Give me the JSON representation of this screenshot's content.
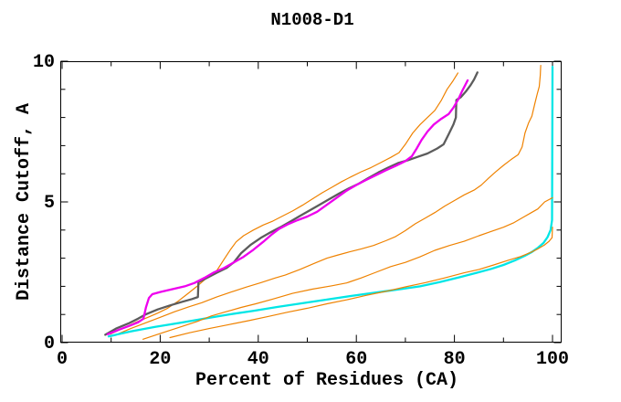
{
  "title": "N1008-D1",
  "chart_data": {
    "type": "line",
    "title": "N1008-D1",
    "xlabel": "Percent of Residues (CA)",
    "ylabel": "Distance Cutoff, A",
    "xlim": [
      0,
      100
    ],
    "ylim": [
      0,
      10
    ],
    "x_major_ticks": [
      0,
      20,
      40,
      60,
      80,
      100
    ],
    "x_minor_ticks": [
      10,
      30,
      50,
      70,
      90
    ],
    "y_major_ticks": [
      0,
      5,
      10
    ],
    "y_minor_ticks": [
      1,
      2,
      3,
      4,
      6,
      7,
      8,
      9
    ],
    "grid": false,
    "legend": "none",
    "background_color": "#ffffff",
    "axis_color": "#000000",
    "series": [
      {
        "name": "orange-2",
        "color": "#ef8200",
        "width": 1.2,
        "points": [
          [
            11,
            0.28
          ],
          [
            14,
            0.5
          ],
          [
            17,
            0.7
          ],
          [
            20,
            0.9
          ],
          [
            23,
            1.1
          ],
          [
            26,
            1.28
          ],
          [
            28.5,
            1.42
          ],
          [
            31.5,
            1.62
          ],
          [
            34.5,
            1.8
          ],
          [
            37.5,
            1.97
          ],
          [
            40.5,
            2.13
          ],
          [
            43.5,
            2.3
          ],
          [
            45.5,
            2.4
          ],
          [
            48.5,
            2.6
          ],
          [
            51.5,
            2.82
          ],
          [
            54,
            3.0
          ],
          [
            56,
            3.1
          ],
          [
            58.5,
            3.22
          ],
          [
            61,
            3.33
          ],
          [
            63.5,
            3.45
          ],
          [
            66,
            3.62
          ],
          [
            68,
            3.77
          ],
          [
            70,
            3.98
          ],
          [
            72,
            4.22
          ],
          [
            74,
            4.42
          ],
          [
            76,
            4.62
          ],
          [
            78,
            4.85
          ],
          [
            80,
            5.05
          ],
          [
            82,
            5.25
          ],
          [
            84,
            5.42
          ],
          [
            85.5,
            5.6
          ],
          [
            87,
            5.85
          ],
          [
            88.5,
            6.08
          ],
          [
            90,
            6.3
          ],
          [
            91.5,
            6.5
          ],
          [
            93,
            6.68
          ],
          [
            93.8,
            6.95
          ],
          [
            94.4,
            7.45
          ],
          [
            95.1,
            7.8
          ],
          [
            95.8,
            8.05
          ],
          [
            96.4,
            8.5
          ],
          [
            96.9,
            8.85
          ],
          [
            97.3,
            9.1
          ],
          [
            97.5,
            9.5
          ],
          [
            97.6,
            9.85
          ]
        ]
      },
      {
        "name": "cyan",
        "color": "#00e6e6",
        "width": 2.3,
        "points": [
          [
            9.5,
            0.22
          ],
          [
            14,
            0.4
          ],
          [
            19,
            0.56
          ],
          [
            24,
            0.7
          ],
          [
            29,
            0.85
          ],
          [
            34,
            1.0
          ],
          [
            39,
            1.13
          ],
          [
            44,
            1.27
          ],
          [
            49,
            1.4
          ],
          [
            54,
            1.53
          ],
          [
            59,
            1.66
          ],
          [
            64,
            1.78
          ],
          [
            69,
            1.9
          ],
          [
            73,
            2.0
          ],
          [
            77,
            2.15
          ],
          [
            81,
            2.32
          ],
          [
            84.5,
            2.48
          ],
          [
            87.5,
            2.62
          ],
          [
            90,
            2.76
          ],
          [
            92.3,
            2.92
          ],
          [
            94.3,
            3.08
          ],
          [
            95.8,
            3.22
          ],
          [
            97.1,
            3.38
          ],
          [
            98.2,
            3.55
          ],
          [
            99,
            3.75
          ],
          [
            99.6,
            4.0
          ],
          [
            99.9,
            4.35
          ],
          [
            100,
            9.8
          ]
        ]
      },
      {
        "name": "orange-3",
        "color": "#ef8200",
        "width": 1.2,
        "points": [
          [
            16.5,
            0.12
          ],
          [
            20,
            0.32
          ],
          [
            24,
            0.55
          ],
          [
            27.5,
            0.75
          ],
          [
            30.5,
            0.95
          ],
          [
            33.5,
            1.1
          ],
          [
            36.5,
            1.25
          ],
          [
            39.5,
            1.38
          ],
          [
            43,
            1.55
          ],
          [
            47,
            1.75
          ],
          [
            51,
            1.9
          ],
          [
            55,
            2.02
          ],
          [
            58,
            2.12
          ],
          [
            61,
            2.3
          ],
          [
            64,
            2.5
          ],
          [
            67,
            2.7
          ],
          [
            70,
            2.85
          ],
          [
            73,
            3.05
          ],
          [
            76,
            3.28
          ],
          [
            79,
            3.45
          ],
          [
            82,
            3.6
          ],
          [
            85,
            3.8
          ],
          [
            87.5,
            3.95
          ],
          [
            90,
            4.1
          ],
          [
            92,
            4.25
          ],
          [
            94,
            4.45
          ],
          [
            95.5,
            4.6
          ],
          [
            97,
            4.75
          ],
          [
            98.4,
            5.0
          ],
          [
            99.5,
            5.1
          ],
          [
            100,
            5.15
          ]
        ]
      },
      {
        "name": "orange-4",
        "color": "#ef8200",
        "width": 1.2,
        "points": [
          [
            22,
            0.18
          ],
          [
            26,
            0.35
          ],
          [
            30,
            0.5
          ],
          [
            34,
            0.64
          ],
          [
            38,
            0.78
          ],
          [
            42,
            0.93
          ],
          [
            46,
            1.08
          ],
          [
            50,
            1.22
          ],
          [
            54,
            1.38
          ],
          [
            58,
            1.52
          ],
          [
            62,
            1.68
          ],
          [
            66,
            1.82
          ],
          [
            70,
            1.98
          ],
          [
            74,
            2.13
          ],
          [
            78,
            2.3
          ],
          [
            82,
            2.48
          ],
          [
            85,
            2.6
          ],
          [
            88,
            2.76
          ],
          [
            91,
            2.93
          ],
          [
            93.5,
            3.06
          ],
          [
            95.5,
            3.2
          ],
          [
            97,
            3.33
          ],
          [
            98.3,
            3.46
          ],
          [
            99.3,
            3.6
          ],
          [
            99.9,
            3.73
          ],
          [
            100,
            4.1
          ]
        ]
      },
      {
        "name": "orange-1",
        "color": "#ef8200",
        "width": 1.2,
        "points": [
          [
            9.8,
            0.3
          ],
          [
            12.5,
            0.52
          ],
          [
            15,
            0.72
          ],
          [
            17.5,
            0.9
          ],
          [
            19.5,
            1.05
          ],
          [
            21.5,
            1.22
          ],
          [
            23.5,
            1.45
          ],
          [
            25.5,
            1.72
          ],
          [
            27.5,
            2.0
          ],
          [
            29.5,
            2.3
          ],
          [
            31.5,
            2.55
          ],
          [
            33,
            2.95
          ],
          [
            34.3,
            3.3
          ],
          [
            35.5,
            3.58
          ],
          [
            37,
            3.8
          ],
          [
            39,
            4.0
          ],
          [
            41,
            4.18
          ],
          [
            43,
            4.32
          ],
          [
            45,
            4.5
          ],
          [
            47,
            4.68
          ],
          [
            49,
            4.88
          ],
          [
            51,
            5.1
          ],
          [
            53,
            5.32
          ],
          [
            55,
            5.52
          ],
          [
            57,
            5.72
          ],
          [
            59,
            5.9
          ],
          [
            61,
            6.07
          ],
          [
            63,
            6.22
          ],
          [
            65,
            6.4
          ],
          [
            67,
            6.58
          ],
          [
            68.7,
            6.75
          ],
          [
            70,
            7.05
          ],
          [
            71.5,
            7.45
          ],
          [
            73,
            7.75
          ],
          [
            74.5,
            8.0
          ],
          [
            76,
            8.25
          ],
          [
            77.3,
            8.6
          ],
          [
            78.5,
            9.0
          ],
          [
            79.7,
            9.3
          ],
          [
            80.7,
            9.58
          ]
        ]
      },
      {
        "name": "gray",
        "color": "#5c5c5c",
        "width": 2.3,
        "points": [
          [
            8.8,
            0.28
          ],
          [
            11,
            0.5
          ],
          [
            13.5,
            0.68
          ],
          [
            15.5,
            0.85
          ],
          [
            17,
            1.0
          ],
          [
            19.5,
            1.18
          ],
          [
            22,
            1.32
          ],
          [
            24.5,
            1.45
          ],
          [
            26.5,
            1.55
          ],
          [
            27.7,
            1.62
          ],
          [
            27.8,
            2.15
          ],
          [
            29.5,
            2.3
          ],
          [
            31.5,
            2.48
          ],
          [
            33.5,
            2.65
          ],
          [
            35,
            2.85
          ],
          [
            36.5,
            3.18
          ],
          [
            38.5,
            3.48
          ],
          [
            40.5,
            3.72
          ],
          [
            42.5,
            3.92
          ],
          [
            44.5,
            4.1
          ],
          [
            46.5,
            4.3
          ],
          [
            48.5,
            4.5
          ],
          [
            50.5,
            4.7
          ],
          [
            52.5,
            4.9
          ],
          [
            54.5,
            5.1
          ],
          [
            56.5,
            5.3
          ],
          [
            58.5,
            5.48
          ],
          [
            60.5,
            5.65
          ],
          [
            62.5,
            5.85
          ],
          [
            64.5,
            6.05
          ],
          [
            66.5,
            6.22
          ],
          [
            68.5,
            6.38
          ],
          [
            70.5,
            6.48
          ],
          [
            72.5,
            6.6
          ],
          [
            74.5,
            6.72
          ],
          [
            76.5,
            6.9
          ],
          [
            77.8,
            7.05
          ],
          [
            78.8,
            7.4
          ],
          [
            79.8,
            7.75
          ],
          [
            80.3,
            8.0
          ],
          [
            80.4,
            8.62
          ],
          [
            81.3,
            8.72
          ],
          [
            82.3,
            8.92
          ],
          [
            83.3,
            9.15
          ],
          [
            84,
            9.35
          ],
          [
            84.7,
            9.6
          ]
        ]
      },
      {
        "name": "magenta",
        "color": "#ee00ee",
        "width": 2.3,
        "points": [
          [
            9.3,
            0.3
          ],
          [
            11.5,
            0.45
          ],
          [
            13.5,
            0.58
          ],
          [
            15.5,
            0.72
          ],
          [
            16.6,
            0.85
          ],
          [
            17.1,
            1.25
          ],
          [
            17.7,
            1.58
          ],
          [
            18.4,
            1.72
          ],
          [
            20,
            1.8
          ],
          [
            22.5,
            1.9
          ],
          [
            25,
            2.0
          ],
          [
            27,
            2.12
          ],
          [
            29,
            2.3
          ],
          [
            31,
            2.5
          ],
          [
            33,
            2.65
          ],
          [
            35,
            2.85
          ],
          [
            37,
            3.05
          ],
          [
            39,
            3.3
          ],
          [
            41,
            3.58
          ],
          [
            42.8,
            3.85
          ],
          [
            44.3,
            4.05
          ],
          [
            46,
            4.2
          ],
          [
            48,
            4.35
          ],
          [
            50,
            4.48
          ],
          [
            52,
            4.65
          ],
          [
            54,
            4.9
          ],
          [
            56,
            5.15
          ],
          [
            58,
            5.4
          ],
          [
            60,
            5.6
          ],
          [
            62,
            5.78
          ],
          [
            64,
            5.95
          ],
          [
            66,
            6.12
          ],
          [
            68,
            6.28
          ],
          [
            70,
            6.45
          ],
          [
            71.3,
            6.62
          ],
          [
            72.3,
            6.9
          ],
          [
            73.3,
            7.2
          ],
          [
            74.5,
            7.5
          ],
          [
            75.8,
            7.75
          ],
          [
            77.3,
            7.95
          ],
          [
            78.8,
            8.12
          ],
          [
            79.8,
            8.35
          ],
          [
            80.8,
            8.65
          ],
          [
            81.6,
            8.95
          ],
          [
            82.2,
            9.15
          ],
          [
            82.7,
            9.32
          ]
        ]
      }
    ]
  }
}
